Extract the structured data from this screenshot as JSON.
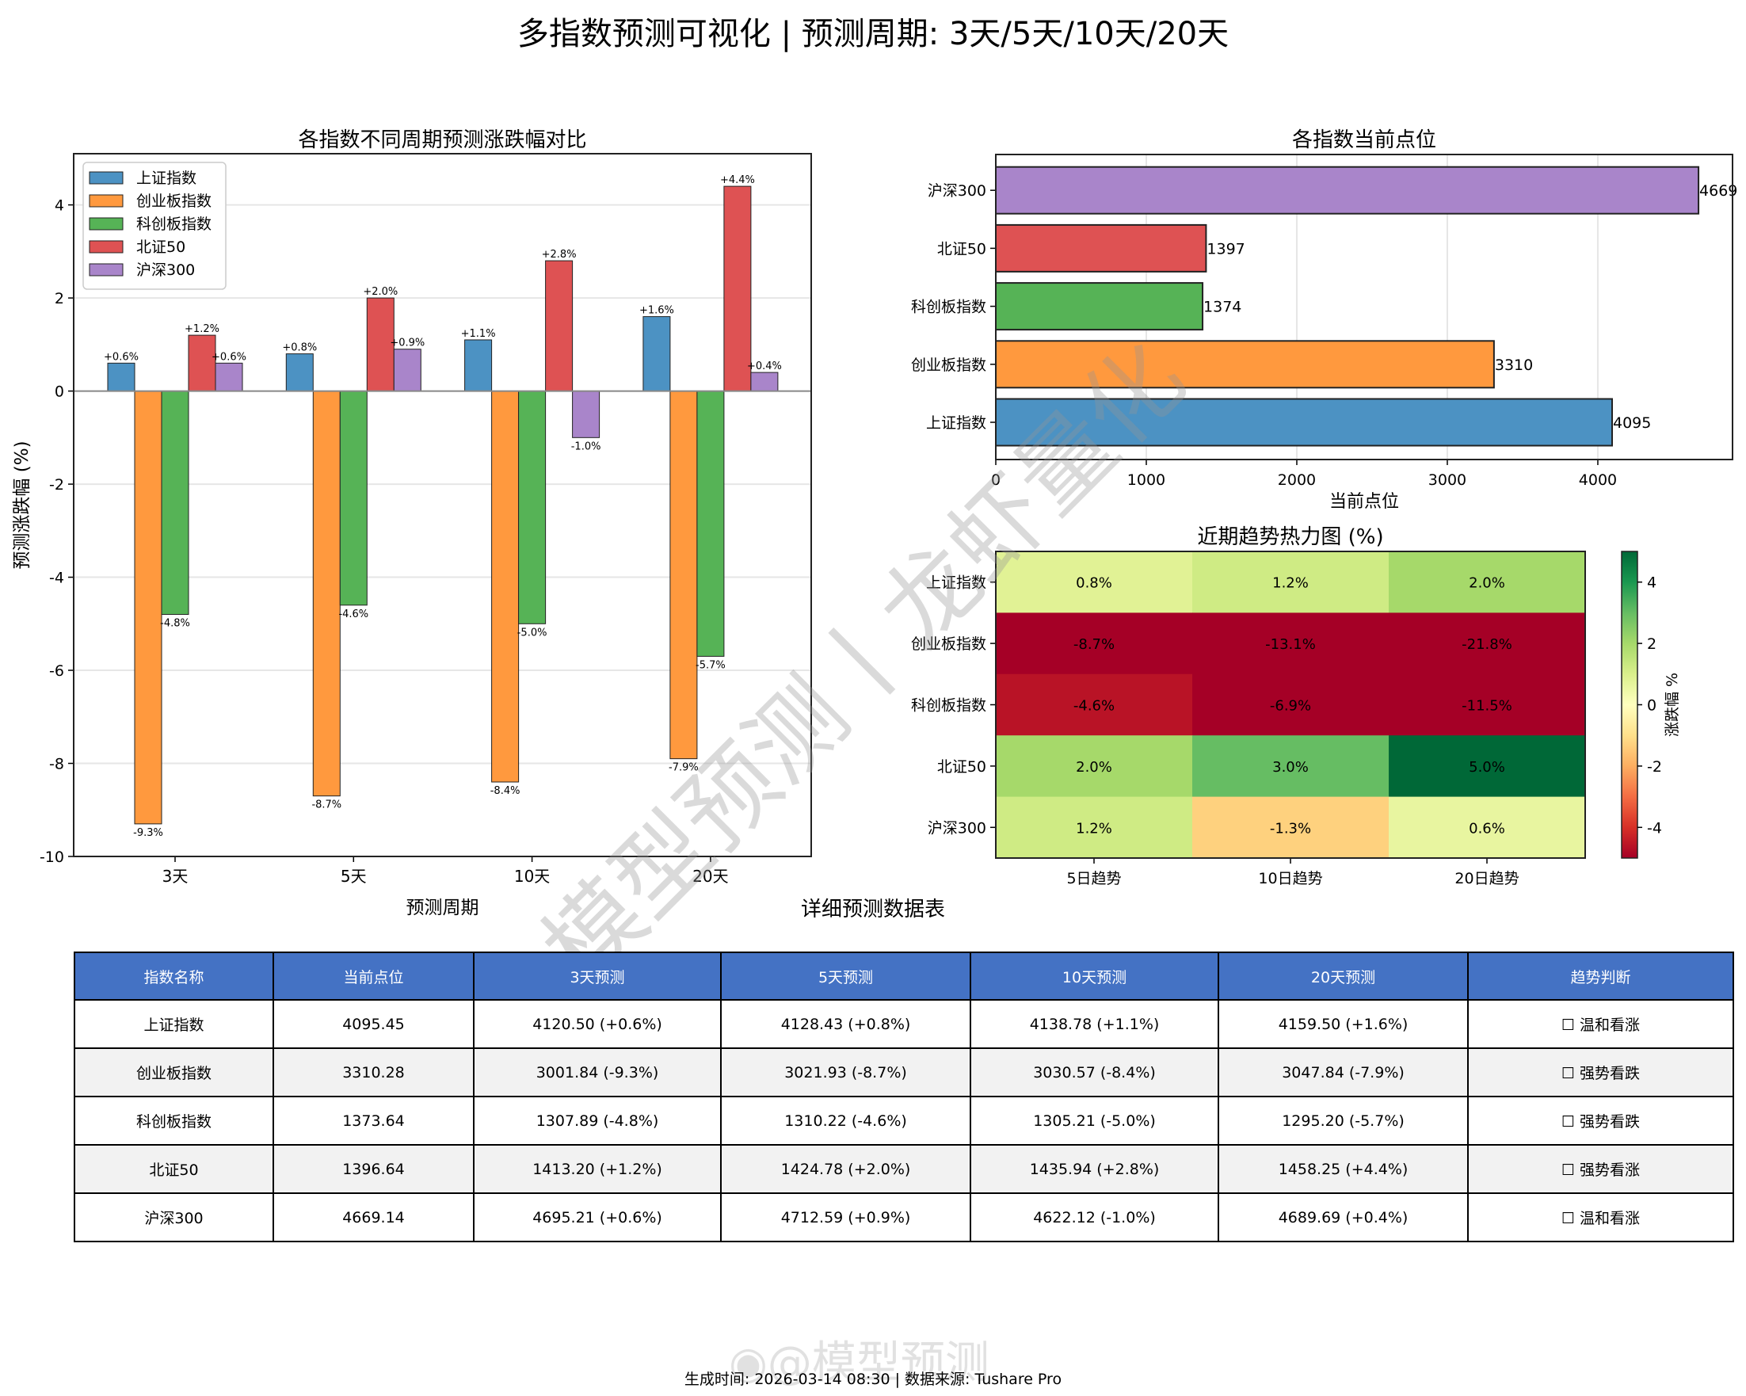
{
  "page": {
    "title": "多指数预测可视化 | 预测周期: 3天/5天/10天/20天",
    "footer": "生成时间: 2026-03-14 08:30 | 数据来源: Tushare Pro",
    "watermark_center": "模型预测丨龙虾量化",
    "watermark_footer": "@模型预测",
    "table_title": "详细预测数据表"
  },
  "colors": {
    "上证指数": "#4c92c3",
    "创业板指数": "#ff993e",
    "科创板指数": "#56b356",
    "北证50": "#de5253",
    "沪深300": "#a985ca",
    "table_header": "#4472c4",
    "table_alt_row": "#f2f2f2"
  },
  "chart_data": [
    {
      "id": "forecast_bar",
      "type": "bar",
      "title": "各指数不同周期预测涨跌幅对比",
      "xlabel": "预测周期",
      "ylabel": "预测涨跌幅 (%)",
      "categories": [
        "3天",
        "5天",
        "10天",
        "20天"
      ],
      "ylim": [
        -10,
        5.1
      ],
      "yticks": [
        -10,
        -8,
        -6,
        -4,
        -2,
        0,
        2,
        4
      ],
      "grid": true,
      "legend_position": "upper left",
      "series": [
        {
          "name": "上证指数",
          "values": [
            0.6,
            0.8,
            1.1,
            1.6
          ],
          "labels": [
            "+0.6%",
            "+0.8%",
            "+1.1%",
            "+1.6%"
          ]
        },
        {
          "name": "创业板指数",
          "values": [
            -9.3,
            -8.7,
            -8.4,
            -7.9
          ],
          "labels": [
            "-9.3%",
            "-8.7%",
            "-8.4%",
            "-7.9%"
          ]
        },
        {
          "name": "科创板指数",
          "values": [
            -4.8,
            -4.6,
            -5.0,
            -5.7
          ],
          "labels": [
            "-4.8%",
            "-4.6%",
            "-5.0%",
            "-5.7%"
          ]
        },
        {
          "name": "北证50",
          "values": [
            1.2,
            2.0,
            2.8,
            4.4
          ],
          "labels": [
            "+1.2%",
            "+2.0%",
            "+2.8%",
            "+4.4%"
          ]
        },
        {
          "name": "沪深300",
          "values": [
            0.6,
            0.9,
            -1.0,
            0.4
          ],
          "labels": [
            "+0.6%",
            "+0.9%",
            "-1.0%",
            "+0.4%"
          ]
        }
      ]
    },
    {
      "id": "current_level_barh",
      "type": "bar",
      "orientation": "horizontal",
      "title": "各指数当前点位",
      "xlabel": "当前点位",
      "ylabel": "",
      "categories": [
        "上证指数",
        "创业板指数",
        "科创板指数",
        "北证50",
        "沪深300"
      ],
      "values": [
        4095,
        3310,
        1374,
        1397,
        4669
      ],
      "labels": [
        "4095",
        "3310",
        "1374",
        "1397",
        "4669"
      ],
      "xlim": [
        0,
        4895
      ],
      "xticks": [
        0,
        1000,
        2000,
        3000,
        4000
      ],
      "grid": true
    },
    {
      "id": "trend_heatmap",
      "type": "heatmap",
      "title": "近期趋势热力图 (%)",
      "rows": [
        "上证指数",
        "创业板指数",
        "科创板指数",
        "北证50",
        "沪深300"
      ],
      "columns": [
        "5日趋势",
        "10日趋势",
        "20日趋势"
      ],
      "values": [
        [
          0.8,
          1.2,
          2.0
        ],
        [
          -8.7,
          -13.1,
          -21.8
        ],
        [
          -4.6,
          -6.9,
          -11.5
        ],
        [
          2.0,
          3.0,
          5.0
        ],
        [
          1.2,
          -1.3,
          0.6
        ]
      ],
      "labels": [
        [
          "0.8%",
          "1.2%",
          "2.0%"
        ],
        [
          "-8.7%",
          "-13.1%",
          "-21.8%"
        ],
        [
          "-4.6%",
          "-6.9%",
          "-11.5%"
        ],
        [
          "2.0%",
          "3.0%",
          "5.0%"
        ],
        [
          "1.2%",
          "-1.3%",
          "0.6%"
        ]
      ],
      "colormap": "RdYlGn",
      "vmin": -5,
      "vmax": 5,
      "colorbar_label": "涨跌幅 %",
      "colorbar_ticks": [
        -4,
        -2,
        0,
        2,
        4
      ]
    },
    {
      "id": "detail_table",
      "type": "table",
      "title": "详细预测数据表",
      "headers": [
        "指数名称",
        "当前点位",
        "3天预测",
        "5天预测",
        "10天预测",
        "20天预测",
        "趋势判断"
      ],
      "rows": [
        [
          "上证指数",
          "4095.45",
          "4120.50 (+0.6%)",
          "4128.43 (+0.8%)",
          "4138.78 (+1.1%)",
          "4159.50 (+1.6%)",
          "☐ 温和看涨"
        ],
        [
          "创业板指数",
          "3310.28",
          "3001.84 (-9.3%)",
          "3021.93 (-8.7%)",
          "3030.57 (-8.4%)",
          "3047.84 (-7.9%)",
          "☐ 强势看跌"
        ],
        [
          "科创板指数",
          "1373.64",
          "1307.89 (-4.8%)",
          "1310.22 (-4.6%)",
          "1305.21 (-5.0%)",
          "1295.20 (-5.7%)",
          "☐ 强势看跌"
        ],
        [
          "北证50",
          "1396.64",
          "1413.20 (+1.2%)",
          "1424.78 (+2.0%)",
          "1435.94 (+2.8%)",
          "1458.25 (+4.4%)",
          "☐ 强势看涨"
        ],
        [
          "沪深300",
          "4669.14",
          "4695.21 (+0.6%)",
          "4712.59 (+0.9%)",
          "4622.12 (-1.0%)",
          "4689.69 (+0.4%)",
          "☐ 温和看涨"
        ]
      ]
    }
  ]
}
